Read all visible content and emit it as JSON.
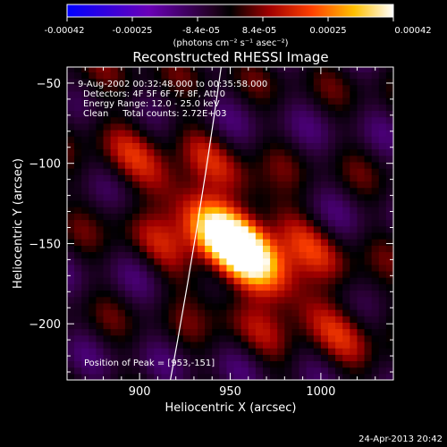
{
  "colorbar": {
    "ticks": [
      "-0.00042",
      "-0.00025",
      "-8.4e-05",
      "8.4e-05",
      "0.00025",
      "0.00042"
    ],
    "units": "(photons cm⁻² s⁻¹ asec⁻²)",
    "colormap": "blue-purple-black-red-yellow-white"
  },
  "chart_data": {
    "type": "heatmap",
    "title": "Reconstructed RHESSI Image",
    "xlabel": "Heliocentric X (arcsec)",
    "ylabel": "Heliocentric Y (arcsec)",
    "xlim": [
      860,
      1040
    ],
    "ylim": [
      -235,
      -40
    ],
    "xticks": [
      900,
      950,
      1000
    ],
    "xtick_labels": [
      "900",
      "950",
      "1000"
    ],
    "yticks": [
      -50,
      -100,
      -150,
      -200
    ],
    "ytick_labels": [
      "−50",
      "−100",
      "−150",
      "−200"
    ],
    "peak": {
      "x": 953,
      "y": -151
    },
    "limb_curve": {
      "x_top": 945,
      "x_bottom": 917
    },
    "annotations": [
      "9-Aug-2002 00:32:48.000 to 00:35:58.000",
      "Detectors: 4F 5F 6F 7F 8F, Att 0",
      "Energy Range: 12.0 - 25.0 keV",
      "Clean     Total counts: 2.72E+03",
      "Position of Peak = [953,-151]"
    ]
  },
  "footer": {
    "timestamp": "24-Apr-2013 20:42"
  }
}
